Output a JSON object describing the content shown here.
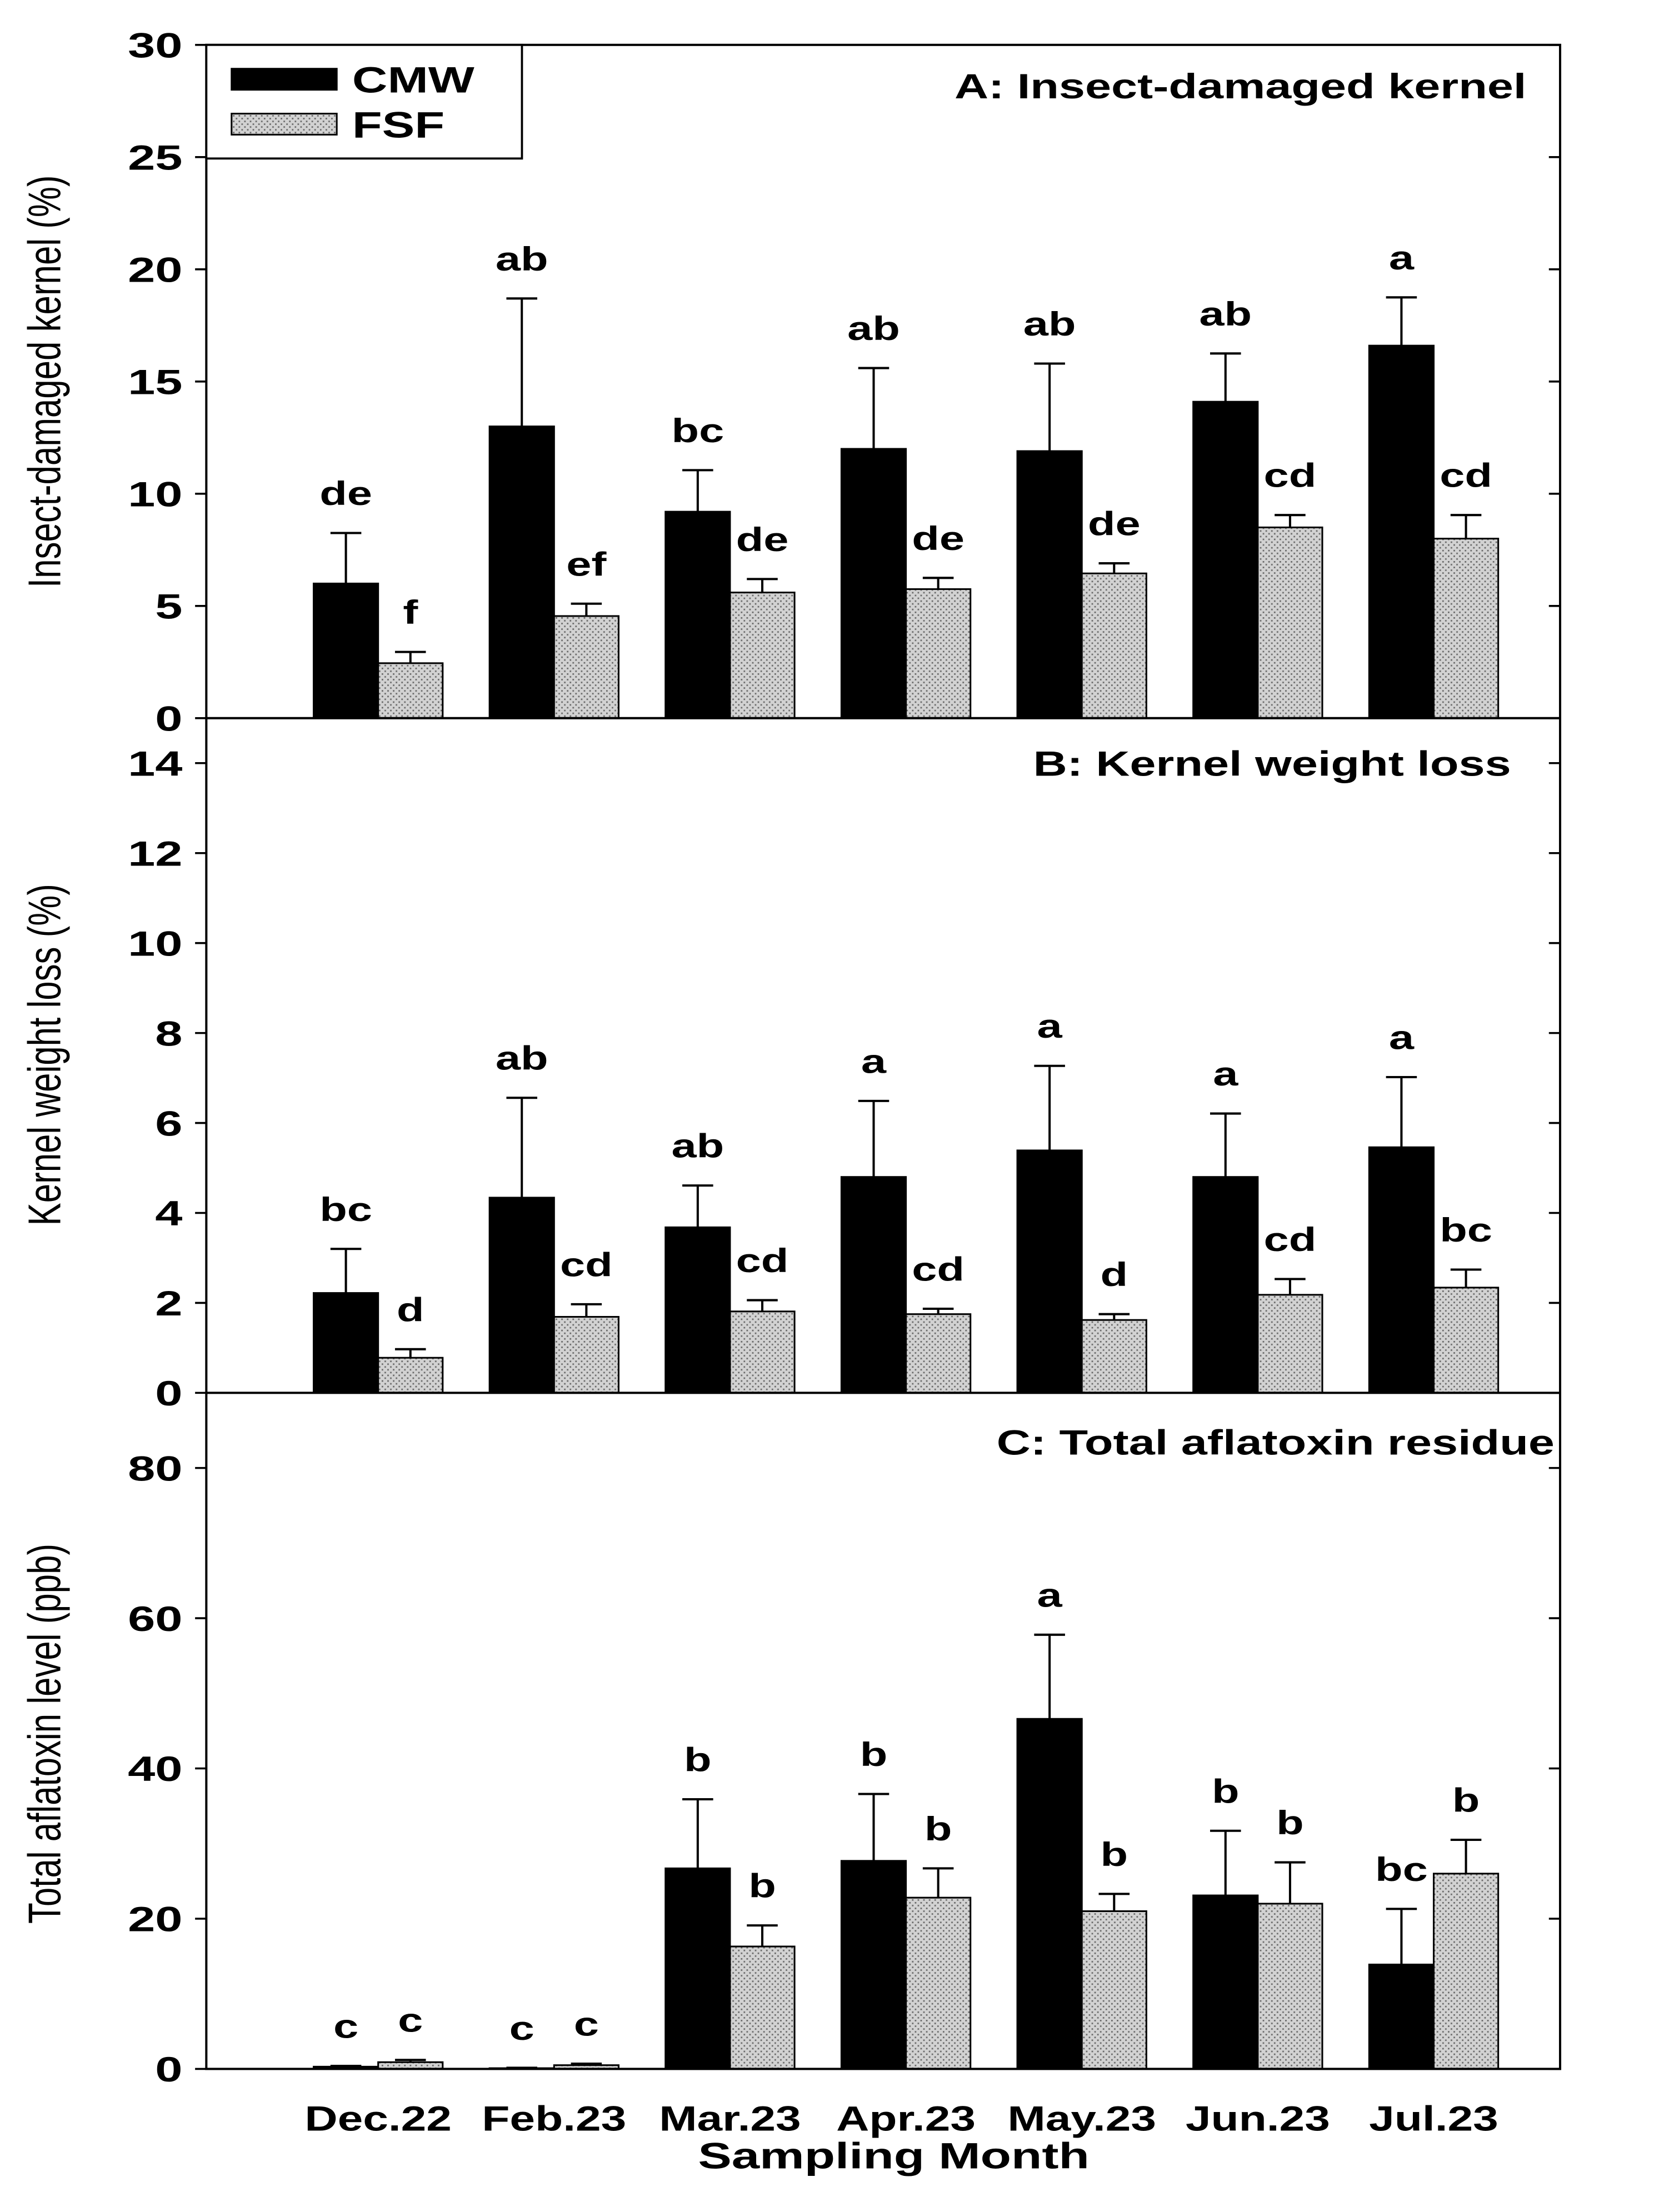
{
  "chart_data": {
    "type": "bar",
    "categories": [
      "Dec.22",
      "Feb.23",
      "Mar.23",
      "Apr.23",
      "May.23",
      "Jun.23",
      "Jul.23"
    ],
    "xlabel": "Sampling Month",
    "legend": {
      "position": "top-left",
      "entries": [
        {
          "name": "CMW",
          "color": "#000000"
        },
        {
          "name": "FSF",
          "color": "#d2d2d2"
        }
      ]
    },
    "panels": [
      {
        "title": "A: Insect-damaged kernel",
        "ylabel": "Insect-damaged kernel (%)",
        "ylim": [
          0,
          30
        ],
        "yticks": [
          0,
          5,
          10,
          15,
          20,
          25,
          30
        ],
        "series": [
          {
            "values": [
              6.0,
              13.0,
              9.2,
              12.0,
              11.9,
              14.1,
              16.6
            ],
            "errors": [
              2.25,
              5.7,
              1.85,
              3.6,
              3.9,
              2.15,
              2.15
            ],
            "letters": [
              "de",
              "ab",
              "bc",
              "ab",
              "ab",
              "ab",
              "a"
            ]
          },
          {
            "values": [
              2.45,
              4.55,
              5.6,
              5.75,
              6.45,
              8.5,
              8.0
            ],
            "errors": [
              0.5,
              0.55,
              0.6,
              0.5,
              0.45,
              0.55,
              1.05
            ],
            "letters": [
              "f",
              "ef",
              "de",
              "de",
              "de",
              "cd",
              "cd"
            ]
          }
        ]
      },
      {
        "title": "B: Kernel weight loss",
        "ylabel": "Kernel weight loss (%)",
        "ylim": [
          0,
          15
        ],
        "yticks": [
          0,
          2,
          4,
          6,
          8,
          10,
          12,
          14
        ],
        "series": [
          {
            "values": [
              2.22,
              4.34,
              3.68,
              4.8,
              5.39,
              4.8,
              5.46
            ],
            "errors": [
              0.98,
              2.22,
              0.93,
              1.69,
              1.88,
              1.41,
              1.56
            ],
            "letters": [
              "bc",
              "ab",
              "ab",
              "a",
              "a",
              "a",
              "a"
            ]
          },
          {
            "values": [
              0.78,
              1.69,
              1.81,
              1.75,
              1.62,
              2.18,
              2.34
            ],
            "errors": [
              0.19,
              0.28,
              0.25,
              0.12,
              0.13,
              0.35,
              0.4
            ],
            "letters": [
              "d",
              "cd",
              "cd",
              "cd",
              "d",
              "cd",
              "bc"
            ]
          }
        ]
      },
      {
        "title": "C: Total aflatoxin residue",
        "ylabel": "Total aflatoxin level (ppb)",
        "ylim": [
          0,
          90
        ],
        "yticks": [
          0,
          20,
          40,
          60,
          80
        ],
        "series": [
          {
            "values": [
              0.3,
              0.1,
              26.7,
              27.7,
              46.6,
              23.1,
              13.9
            ],
            "errors": [
              0.1,
              0.05,
              9.2,
              8.9,
              11.2,
              8.6,
              7.4
            ],
            "letters": [
              "c",
              "c",
              "b",
              "b",
              "a",
              "b",
              "bc"
            ]
          },
          {
            "values": [
              0.9,
              0.5,
              16.3,
              22.8,
              21.0,
              22.0,
              26.0
            ],
            "errors": [
              0.3,
              0.2,
              2.8,
              3.9,
              2.3,
              5.5,
              4.5
            ],
            "letters": [
              "c",
              "c",
              "b",
              "b",
              "b",
              "b",
              "b"
            ]
          }
        ]
      }
    ]
  }
}
